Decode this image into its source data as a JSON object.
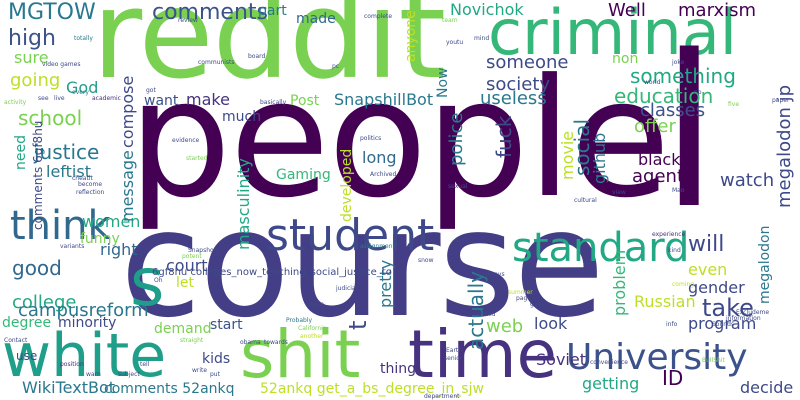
{
  "words": [
    {
      "text": "people",
      "color": "#440154"
    },
    {
      "text": "course",
      "color": "#433e85"
    },
    {
      "text": "reddit",
      "color": "#7ad151"
    },
    {
      "text": "criminal",
      "color": "#35b779"
    },
    {
      "text": "white",
      "color": "#1f9e89"
    },
    {
      "text": "shit",
      "color": "#7ad151"
    },
    {
      "text": "time",
      "color": "#46327e"
    },
    {
      "text": "s",
      "color": "#1f9e89"
    },
    {
      "text": "l",
      "color": "#440154"
    },
    {
      "text": "University",
      "color": "#3b528b"
    },
    {
      "text": "standard",
      "color": "#22a884"
    },
    {
      "text": "student",
      "color": "#3e4989"
    },
    {
      "text": "think",
      "color": "#31688e"
    },
    {
      "text": "MGTOW",
      "color": "#2a788e"
    },
    {
      "text": "comments",
      "color": "#3b528b"
    },
    {
      "text": "high",
      "color": "#3b528b"
    },
    {
      "text": "sure",
      "color": "#7ad151"
    },
    {
      "text": "going",
      "color": "#bddf26"
    },
    {
      "text": "God",
      "color": "#1f9e89"
    },
    {
      "text": "school",
      "color": "#7ad151"
    },
    {
      "text": "justice",
      "color": "#2a788e"
    },
    {
      "text": "leftist",
      "color": "#2a788e"
    },
    {
      "text": "women",
      "color": "#22a884"
    },
    {
      "text": "good",
      "color": "#31688e"
    },
    {
      "text": "funny",
      "color": "#7ad151"
    },
    {
      "text": "right",
      "color": "#31688e"
    },
    {
      "text": "college",
      "color": "#22a884"
    },
    {
      "text": "degree",
      "color": "#35b779"
    },
    {
      "text": "minority",
      "color": "#3e4989"
    },
    {
      "text": "campusreform",
      "color": "#2a788e"
    },
    {
      "text": "use",
      "color": "#3e4989"
    },
    {
      "text": "WikiTextBot",
      "color": "#2a788e"
    },
    {
      "text": "part",
      "color": "#2a788e"
    },
    {
      "text": "made",
      "color": "#31688e"
    },
    {
      "text": "make",
      "color": "#46327e"
    },
    {
      "text": "much",
      "color": "#3e4989"
    },
    {
      "text": "want",
      "color": "#3b528b"
    },
    {
      "text": "Post",
      "color": "#7ad151"
    },
    {
      "text": "SnapshillBot",
      "color": "#2a788e"
    },
    {
      "text": "Gaming",
      "color": "#35b779"
    },
    {
      "text": "court",
      "color": "#3e4989"
    },
    {
      "text": "let",
      "color": "#bddf26"
    },
    {
      "text": "start",
      "color": "#3b528b"
    },
    {
      "text": "demand",
      "color": "#7ad151"
    },
    {
      "text": "kids",
      "color": "#3e4989"
    },
    {
      "text": "thing",
      "color": "#46327e"
    },
    {
      "text": "Novichok",
      "color": "#22a884"
    },
    {
      "text": "Well",
      "color": "#440154"
    },
    {
      "text": "marxism",
      "color": "#440154"
    },
    {
      "text": "someone",
      "color": "#3e4989"
    },
    {
      "text": "non",
      "color": "#7ad151"
    },
    {
      "text": "something",
      "color": "#22a884"
    },
    {
      "text": "education",
      "color": "#35b779"
    },
    {
      "text": "society",
      "color": "#3e4989"
    },
    {
      "text": "useless",
      "color": "#2a788e"
    },
    {
      "text": "classes",
      "color": "#3b528b"
    },
    {
      "text": "offer",
      "color": "#7ad151"
    },
    {
      "text": "black",
      "color": "#440154"
    },
    {
      "text": "agent",
      "color": "#440154"
    },
    {
      "text": "watch",
      "color": "#3e4989"
    },
    {
      "text": "long",
      "color": "#31688e"
    },
    {
      "text": "will",
      "color": "#3e4989"
    },
    {
      "text": "take",
      "color": "#3e4989"
    },
    {
      "text": "even",
      "color": "#bddf26"
    },
    {
      "text": "gender",
      "color": "#3e4989"
    },
    {
      "text": "program",
      "color": "#3e4989"
    },
    {
      "text": "Russian",
      "color": "#bddf26"
    },
    {
      "text": "web",
      "color": "#7ad151"
    },
    {
      "text": "look",
      "color": "#3e4989"
    },
    {
      "text": "Soviet",
      "color": "#46327e"
    },
    {
      "text": "ID",
      "color": "#440154"
    },
    {
      "text": "getting",
      "color": "#22a884"
    },
    {
      "text": "decide",
      "color": "#3e4989"
    },
    {
      "text": "pretty",
      "color": "#2a788e"
    },
    {
      "text": "actually",
      "color": "#2a788e"
    },
    {
      "text": "problem",
      "color": "#35b779"
    },
    {
      "text": "movie",
      "color": "#bddf26"
    },
    {
      "text": "developed",
      "color": "#bddf26"
    },
    {
      "text": "police",
      "color": "#2a788e"
    },
    {
      "text": "fuck",
      "color": "#3e4989"
    },
    {
      "text": "social",
      "color": "#2a788e"
    },
    {
      "text": "github",
      "color": "#2a788e"
    },
    {
      "text": "megalodon jp",
      "color": "#3e4989"
    },
    {
      "text": "megalodon",
      "color": "#2a788e"
    },
    {
      "text": "masculinity",
      "color": "#22a884"
    },
    {
      "text": "compose",
      "color": "#3e4989"
    },
    {
      "text": "message",
      "color": "#2a788e"
    },
    {
      "text": "need",
      "color": "#22a884"
    },
    {
      "text": "anyone",
      "color": "#bddf26"
    },
    {
      "text": "Now",
      "color": "#2a788e"
    },
    {
      "text": "t",
      "color": "#3e4989"
    },
    {
      "text": "comments 6gf8hu",
      "color": "#3e4989"
    },
    {
      "text": "comments 52ankq",
      "color": "#2a788e"
    },
    {
      "text": "52ankq get_a_bs_degree_in_sjw",
      "color": "#bddf26"
    },
    {
      "text": "6gf8hu colleges_now_teaching_social_justice_to",
      "color": "#3e4989"
    },
    {
      "text": "totally",
      "color": "#2a788e"
    },
    {
      "text": "video games",
      "color": "#3e4989"
    },
    {
      "text": "activity",
      "color": "#7ad151"
    },
    {
      "text": "see",
      "color": "#3e4989"
    },
    {
      "text": "live",
      "color": "#3e4989"
    },
    {
      "text": "academic",
      "color": "#46327e"
    },
    {
      "text": "every",
      "color": "#2a788e"
    },
    {
      "text": "become",
      "color": "#3e4989"
    },
    {
      "text": "reflection",
      "color": "#3e4989"
    },
    {
      "text": "cheatit",
      "color": "#3e4989"
    },
    {
      "text": "variants",
      "color": "#3e4989"
    },
    {
      "text": "Contact",
      "color": "#3e4989"
    },
    {
      "text": "position",
      "color": "#46327e"
    },
    {
      "text": "straight",
      "color": "#7ad151"
    },
    {
      "text": "Snapshots",
      "color": "#3e4989"
    },
    {
      "text": "potent",
      "color": "#7ad151"
    },
    {
      "text": "evidence",
      "color": "#3e4989"
    },
    {
      "text": "started",
      "color": "#7ad151"
    },
    {
      "text": "politics",
      "color": "#3e4989"
    },
    {
      "text": "Archived",
      "color": "#3e4989"
    },
    {
      "text": "sexual",
      "color": "#3e4989"
    },
    {
      "text": "assignment",
      "color": "#2a788e"
    },
    {
      "text": "judicial",
      "color": "#3e4989"
    },
    {
      "text": "Probably",
      "color": "#2a788e"
    },
    {
      "text": "California",
      "color": "#7ad151"
    },
    {
      "text": "another",
      "color": "#bddf26"
    },
    {
      "text": "always",
      "color": "#3e4989"
    },
    {
      "text": "page",
      "color": "#3e4989"
    },
    {
      "text": "guess",
      "color": "#3e4989"
    },
    {
      "text": "summer",
      "color": "#bddf26"
    },
    {
      "text": "convenience",
      "color": "#3e4989"
    },
    {
      "text": "senior",
      "color": "#3e4989"
    },
    {
      "text": "Earth",
      "color": "#3e4989"
    },
    {
      "text": "department",
      "color": "#3e4989"
    },
    {
      "text": "BullShit",
      "color": "#7ad151"
    },
    {
      "text": "Sounds",
      "color": "#3e4989"
    },
    {
      "text": "information",
      "color": "#3e4989"
    },
    {
      "text": "Excludeme",
      "color": "#3e4989"
    },
    {
      "text": "coming",
      "color": "#bddf26"
    },
    {
      "text": "experience",
      "color": "#46327e"
    },
    {
      "text": "cultural",
      "color": "#3e4989"
    },
    {
      "text": "view",
      "color": "#3e4989"
    },
    {
      "text": "world",
      "color": "#3e4989"
    },
    {
      "text": "joke",
      "color": "#3e4989"
    },
    {
      "text": "paper",
      "color": "#3e4989"
    },
    {
      "text": "kind",
      "color": "#3e4989"
    },
    {
      "text": "review",
      "color": "#3e4989"
    },
    {
      "text": "complete",
      "color": "#3e4989"
    },
    {
      "text": "board",
      "color": "#3e4989"
    },
    {
      "text": "communists",
      "color": "#3e4989"
    },
    {
      "text": "mind",
      "color": "#3e4989"
    },
    {
      "text": "youtu",
      "color": "#3e4989"
    },
    {
      "text": "team",
      "color": "#7ad151"
    },
    {
      "text": "basically",
      "color": "#3e4989"
    },
    {
      "text": "towards",
      "color": "#3e4989"
    },
    {
      "text": "obama",
      "color": "#3e4989"
    },
    {
      "text": "doesn",
      "color": "#3e4989"
    },
    {
      "text": "sort",
      "color": "#3e4989"
    },
    {
      "text": "snow",
      "color": "#3e4989"
    },
    {
      "text": "subject",
      "color": "#3e4989"
    },
    {
      "text": "write",
      "color": "#3e4989"
    },
    {
      "text": "put",
      "color": "#3e4989"
    },
    {
      "text": "tell",
      "color": "#3e4989"
    },
    {
      "text": "warn",
      "color": "#3e4989"
    },
    {
      "text": "five",
      "color": "#7ad151"
    },
    {
      "text": "np",
      "color": "#3e4989"
    },
    {
      "text": "Mao",
      "color": "#3e4989"
    },
    {
      "text": "pc",
      "color": "#3e4989"
    },
    {
      "text": "got",
      "color": "#3e4989"
    },
    {
      "text": "Oh",
      "color": "#3e4989"
    },
    {
      "text": "info",
      "color": "#3e4989"
    },
    {
      "text": "asked",
      "color": "#3e4989"
    }
  ]
}
